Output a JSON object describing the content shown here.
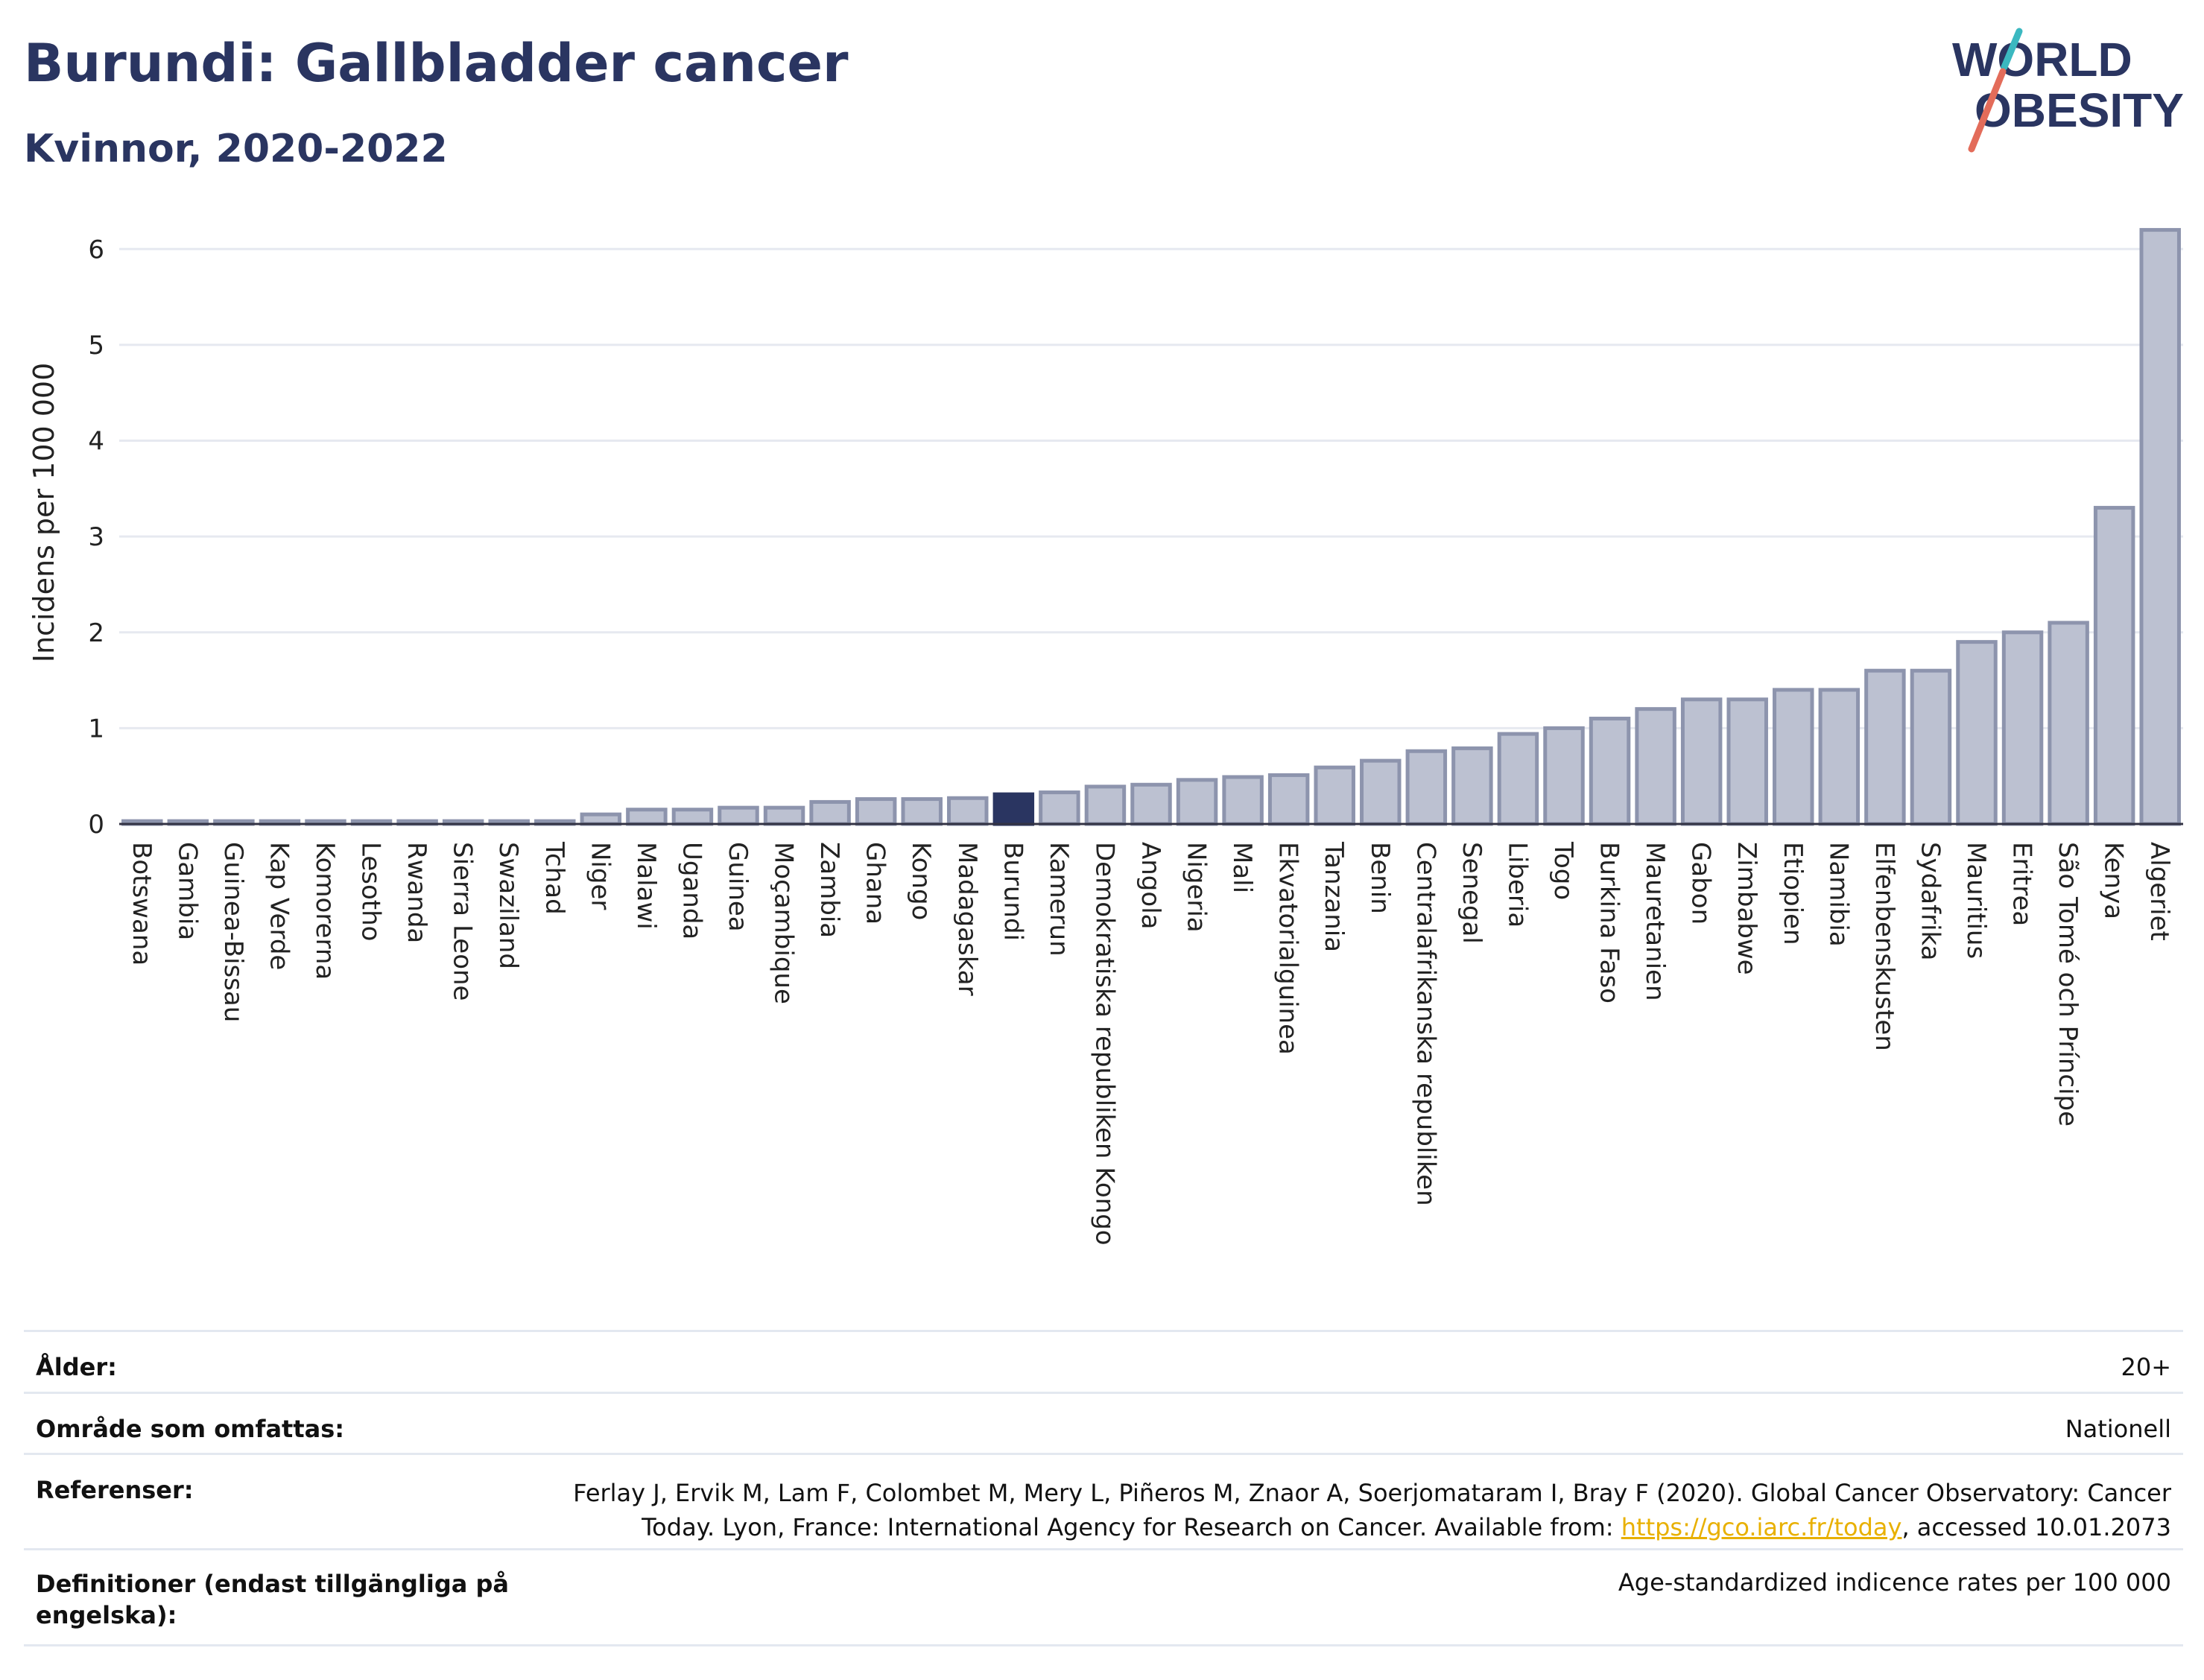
{
  "header": {
    "title": "Burundi: Gallbladder cancer",
    "subtitle": "Kvinnor, 2020-2022",
    "logo_line1": "WORLD",
    "logo_line2": "OBESITY"
  },
  "chart_data": {
    "type": "bar",
    "ylabel": "Incidens per 100 000",
    "ylim": [
      0,
      6.5
    ],
    "yticks": [
      0,
      1,
      2,
      3,
      4,
      5,
      6
    ],
    "grid": true,
    "highlight": "Burundi",
    "categories": [
      "Botswana",
      "Gambia",
      "Guinea-Bissau",
      "Kap Verde",
      "Komorerna",
      "Lesotho",
      "Rwanda",
      "Sierra Leone",
      "Swaziland",
      "Tchad",
      "Niger",
      "Malawi",
      "Uganda",
      "Guinea",
      "Moçambique",
      "Zambia",
      "Ghana",
      "Kongo",
      "Madagaskar",
      "Burundi",
      "Kamerun",
      "Demokratiska republiken Kongo",
      "Angola",
      "Nigeria",
      "Mali",
      "Ekvatorialguinea",
      "Tanzania",
      "Benin",
      "Centralafrikanska republiken",
      "Senegal",
      "Liberia",
      "Togo",
      "Burkina Faso",
      "Mauretanien",
      "Gabon",
      "Zimbabwe",
      "Etiopien",
      "Namibia",
      "Elfenbenskusten",
      "Sydafrika",
      "Mauritius",
      "Eritrea",
      "São Tomé och Príncipe",
      "Kenya",
      "Algeriet"
    ],
    "values": [
      0.03,
      0.03,
      0.03,
      0.03,
      0.03,
      0.03,
      0.03,
      0.03,
      0.03,
      0.03,
      0.1,
      0.15,
      0.15,
      0.17,
      0.17,
      0.23,
      0.26,
      0.26,
      0.27,
      0.31,
      0.33,
      0.39,
      0.41,
      0.46,
      0.49,
      0.51,
      0.59,
      0.66,
      0.76,
      0.79,
      0.94,
      1.0,
      1.1,
      1.2,
      1.3,
      1.3,
      1.4,
      1.4,
      1.6,
      1.6,
      1.9,
      2.0,
      2.1,
      3.3,
      6.2
    ],
    "colors": {
      "bar": "#bcc1d1",
      "bar_stroke": "#8d94ad",
      "highlight": "#2a3561",
      "grid": "#e6e9f0",
      "axis": "#333344"
    }
  },
  "meta": {
    "age_label": "Ålder:",
    "age_value": "20+",
    "area_label": "Område som omfattas:",
    "area_value": "Nationell",
    "ref_label": "Referenser:",
    "ref_line1": "Ferlay J, Ervik M, Lam F, Colombet M, Mery L, Piñeros M, Znaor A, Soerjomataram I, Bray F (2020). Global Cancer Observatory: Cancer",
    "ref_line2_pre": "Today. Lyon, France: International Agency for Research on Cancer. Available from: ",
    "ref_link": "https://gco.iarc.fr/today",
    "ref_line2_post": ", accessed 10.01.2073",
    "def_label_line1": "Definitioner (endast tillgängliga på",
    "def_label_line2": "engelska):",
    "def_value": "Age-standardized indicence rates per 100 000"
  }
}
